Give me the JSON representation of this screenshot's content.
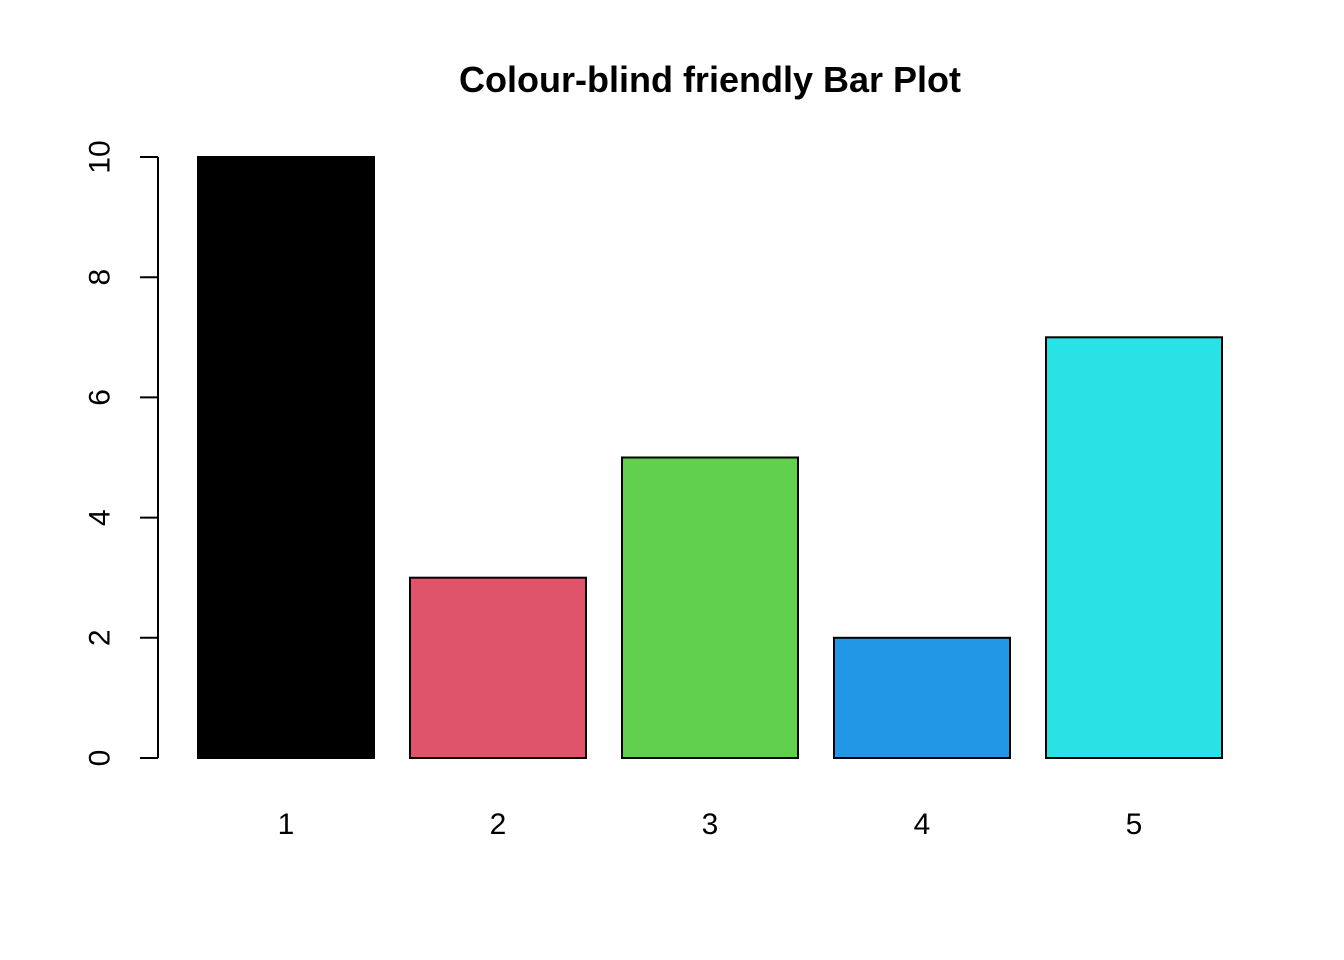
{
  "chart_data": {
    "type": "bar",
    "title": "Colour-blind friendly Bar Plot",
    "xlabel": "",
    "ylabel": "",
    "categories": [
      "1",
      "2",
      "3",
      "4",
      "5"
    ],
    "values": [
      10,
      3,
      5,
      2,
      7
    ],
    "colors": [
      "#000000",
      "#DF536B",
      "#61D04F",
      "#2297E6",
      "#28E2E5"
    ],
    "ylim": [
      0,
      10
    ],
    "yticks": [
      0,
      2,
      4,
      6,
      8,
      10
    ],
    "ytick_labels": [
      "0",
      "2",
      "4",
      "6",
      "8",
      "10"
    ],
    "grid": false,
    "legend": "none"
  }
}
